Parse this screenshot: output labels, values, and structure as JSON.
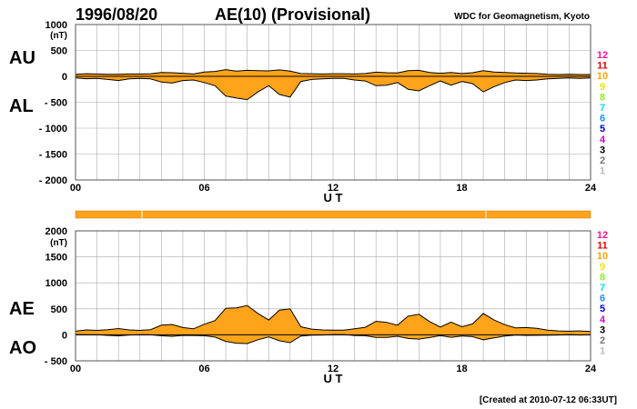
{
  "header": {
    "date": "1996/08/20",
    "title": "AE(10) (Provisional)",
    "source": "WDC for Geomagnetism, Kyoto"
  },
  "footer": {
    "created": "[Created at 2010-07-12 06:33UT]"
  },
  "colors": {
    "fill": "#ffa31a",
    "line": "#000000",
    "grid": "#aaaaaa",
    "bar": "#ffa31a"
  },
  "station_scale": [
    {
      "label": "12",
      "color": "#ff1493"
    },
    {
      "label": "11",
      "color": "#e00000"
    },
    {
      "label": "10",
      "color": "#ffa500"
    },
    {
      "label": "9",
      "color": "#e8e800"
    },
    {
      "label": "8",
      "color": "#90ee20"
    },
    {
      "label": "7",
      "color": "#00e0e0"
    },
    {
      "label": "6",
      "color": "#1e90ff"
    },
    {
      "label": "5",
      "color": "#0000cd"
    },
    {
      "label": "4",
      "color": "#d000d0"
    },
    {
      "label": "3",
      "color": "#000000"
    },
    {
      "label": "2",
      "color": "#777777"
    },
    {
      "label": "1",
      "color": "#bbbbbb"
    }
  ],
  "chart_data": [
    {
      "type": "area",
      "panel": "AU/AL",
      "upper_label": "AU",
      "lower_label": "AL",
      "unit": "(nT)",
      "ylim": [
        -2000,
        1000
      ],
      "yticks": [
        1000,
        500,
        0,
        -500,
        -1000,
        -1500,
        -2000
      ],
      "ytick_labels": [
        "1000",
        "500",
        "0",
        "- 500",
        "- 1000",
        "- 1500",
        "- 2000"
      ],
      "xlim": [
        0,
        24
      ],
      "xticks": [
        0,
        6,
        12,
        18,
        24
      ],
      "xtick_labels": [
        "00",
        "06",
        "12",
        "18",
        "24"
      ],
      "xlabel": "U T",
      "grid": true,
      "x_hours": [
        0,
        0.5,
        1,
        1.5,
        2,
        2.5,
        3,
        3.5,
        4,
        4.5,
        5,
        5.5,
        6,
        6.5,
        7,
        7.5,
        8,
        8.5,
        9,
        9.5,
        10,
        10.5,
        11,
        11.5,
        12,
        12.5,
        13,
        13.5,
        14,
        14.5,
        15,
        15.5,
        16,
        16.5,
        17,
        17.5,
        18,
        18.5,
        19,
        19.5,
        20,
        20.5,
        21,
        21.5,
        22,
        22.5,
        23,
        23.5,
        24
      ],
      "series": [
        {
          "name": "AU",
          "values": [
            40,
            50,
            45,
            40,
            40,
            45,
            45,
            50,
            75,
            70,
            60,
            45,
            85,
            95,
            130,
            100,
            115,
            110,
            105,
            125,
            100,
            55,
            50,
            45,
            50,
            50,
            45,
            55,
            80,
            70,
            65,
            110,
            115,
            75,
            60,
            75,
            55,
            70,
            110,
            85,
            75,
            65,
            60,
            55,
            40,
            35,
            40,
            35,
            35
          ]
        },
        {
          "name": "AL",
          "values": [
            -30,
            -45,
            -40,
            -60,
            -80,
            -50,
            -40,
            -50,
            -110,
            -130,
            -80,
            -70,
            -120,
            -180,
            -380,
            -420,
            -450,
            -300,
            -180,
            -350,
            -400,
            -100,
            -60,
            -50,
            -40,
            -40,
            -70,
            -90,
            -180,
            -170,
            -120,
            -250,
            -280,
            -180,
            -90,
            -170,
            -100,
            -140,
            -300,
            -200,
            -120,
            -70,
            -80,
            -70,
            -50,
            -40,
            -30,
            -40,
            -30
          ]
        }
      ]
    },
    {
      "type": "area",
      "panel": "AE/AO",
      "upper_label": "AE",
      "lower_label": "AO",
      "unit": "(nT)",
      "ylim": [
        -500,
        2000
      ],
      "yticks": [
        2000,
        1500,
        1000,
        500,
        0,
        -500
      ],
      "ytick_labels": [
        "2000",
        "1500",
        "1000",
        "500",
        "0",
        "- 500"
      ],
      "xlim": [
        0,
        24
      ],
      "xticks": [
        0,
        6,
        12,
        18,
        24
      ],
      "xtick_labels": [
        "00",
        "06",
        "12",
        "18",
        "24"
      ],
      "xlabel": "U T",
      "grid": true,
      "x_hours": [
        0,
        0.5,
        1,
        1.5,
        2,
        2.5,
        3,
        3.5,
        4,
        4.5,
        5,
        5.5,
        6,
        6.5,
        7,
        7.5,
        8,
        8.5,
        9,
        9.5,
        10,
        10.5,
        11,
        11.5,
        12,
        12.5,
        13,
        13.5,
        14,
        14.5,
        15,
        15.5,
        16,
        16.5,
        17,
        17.5,
        18,
        18.5,
        19,
        19.5,
        20,
        20.5,
        21,
        21.5,
        22,
        22.5,
        23,
        23.5,
        24
      ],
      "series": [
        {
          "name": "AE",
          "values": [
            70,
            95,
            85,
            100,
            120,
            95,
            85,
            100,
            185,
            200,
            140,
            115,
            205,
            275,
            510,
            520,
            565,
            410,
            285,
            475,
            500,
            155,
            110,
            95,
            90,
            90,
            115,
            145,
            260,
            240,
            185,
            360,
            395,
            255,
            150,
            245,
            155,
            210,
            410,
            285,
            195,
            135,
            140,
            125,
            90,
            75,
            70,
            75,
            65
          ]
        },
        {
          "name": "AO",
          "values": [
            5,
            3,
            3,
            -10,
            -20,
            -3,
            3,
            0,
            -18,
            -30,
            -10,
            -13,
            -18,
            -43,
            -125,
            -160,
            -168,
            -95,
            -38,
            -113,
            -150,
            -23,
            -5,
            -3,
            5,
            5,
            -13,
            -18,
            -50,
            -50,
            -28,
            -70,
            -83,
            -53,
            -15,
            -48,
            -23,
            -35,
            -95,
            -58,
            -23,
            -3,
            -10,
            -8,
            -5,
            -3,
            5,
            -3,
            3
          ]
        }
      ]
    }
  ]
}
